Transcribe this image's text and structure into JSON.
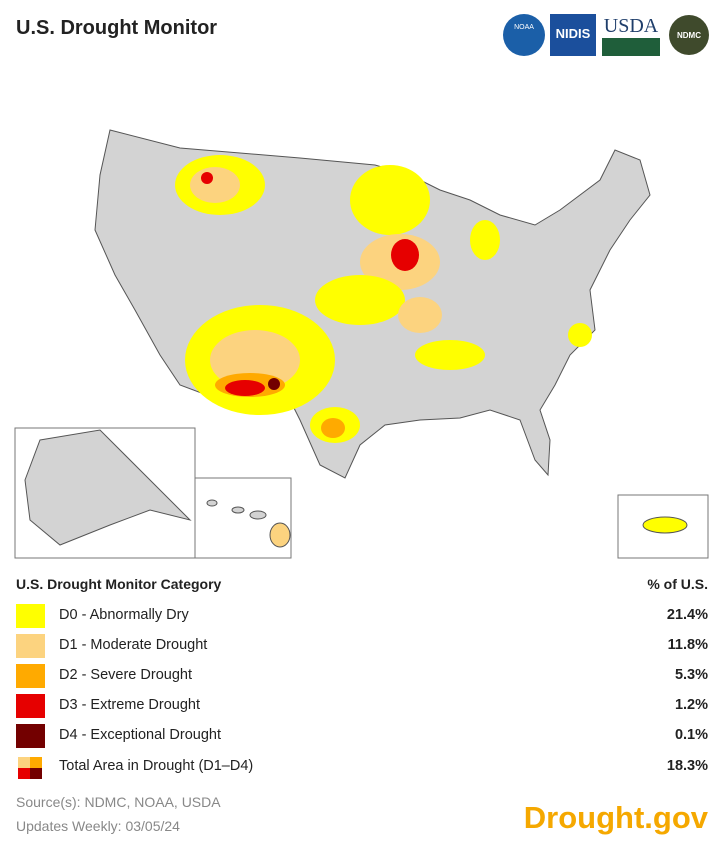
{
  "header": {
    "title": "U.S. Drought Monitor",
    "logos": [
      "NOAA",
      "NIDIS",
      "USDA",
      "NDMC"
    ]
  },
  "legend": {
    "category_header": "U.S. Drought Monitor Category",
    "percent_header": "% of U.S.",
    "rows": [
      {
        "label": "D0 - Abnormally Dry",
        "percent": "21.4%",
        "color": "#ffff00"
      },
      {
        "label": "D1 - Moderate Drought",
        "percent": "11.8%",
        "color": "#fcd37f"
      },
      {
        "label": "D2 - Severe Drought",
        "percent": "5.3%",
        "color": "#ffaa00"
      },
      {
        "label": "D3 - Extreme Drought",
        "percent": "1.2%",
        "color": "#e60000"
      },
      {
        "label": "D4 - Exceptional Drought",
        "percent": "0.1%",
        "color": "#730000"
      },
      {
        "label": "Total Area in Drought (D1–D4)",
        "percent": "18.3%",
        "colors": [
          "#fcd37f",
          "#ffaa00",
          "#e60000",
          "#730000"
        ]
      }
    ]
  },
  "footer": {
    "source": "Source(s): NDMC, NOAA, USDA",
    "updated": "Updates Weekly: 03/05/24",
    "brand": "Drought.gov"
  }
}
